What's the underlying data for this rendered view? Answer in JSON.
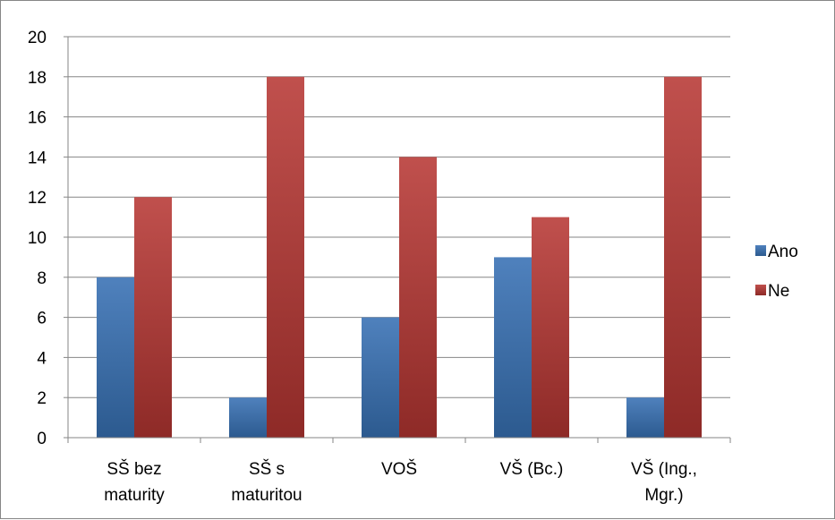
{
  "chart_data": {
    "type": "bar",
    "categories": [
      [
        "SŠ bez",
        "maturity"
      ],
      [
        "SŠ s",
        "maturitou"
      ],
      [
        "VOŠ"
      ],
      [
        "VŠ (Bc.)"
      ],
      [
        "VŠ (Ing.,",
        "Mgr.)"
      ]
    ],
    "series": [
      {
        "name": "Ano",
        "values": [
          8,
          2,
          6,
          9,
          2
        ],
        "color": "#4f81bd",
        "color_dark": "#2c5a8f"
      },
      {
        "name": "Ne",
        "values": [
          12,
          18,
          14,
          11,
          18
        ],
        "color": "#c0504d",
        "color_dark": "#8e2a27"
      }
    ],
    "ylim": [
      0,
      20
    ],
    "yticks": [
      0,
      2,
      4,
      6,
      8,
      10,
      12,
      14,
      16,
      18,
      20
    ],
    "grid": true,
    "legend": "right",
    "title": "",
    "xlabel": "",
    "ylabel": ""
  }
}
